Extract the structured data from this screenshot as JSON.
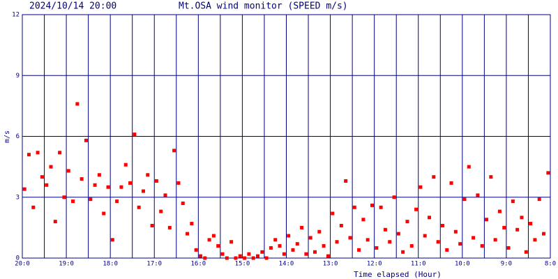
{
  "chart_data": {
    "type": "scatter",
    "title": "Mt.OSA wind monitor (SPEED m/s)",
    "subtitle": "2024/10/14 20:00",
    "y_label": "m/s",
    "x_label": "Time elapsed (Hour)",
    "color": "#ff0000",
    "grid_color": "#000080",
    "grid": true,
    "xlim": [
      0,
      12
    ],
    "ylim": [
      0,
      12
    ],
    "yticks": [
      0,
      3,
      6,
      9,
      12
    ],
    "xticks": [
      {
        "value": 0,
        "label": "20:0"
      },
      {
        "value": 1,
        "label": "19:0"
      },
      {
        "value": 2,
        "label": "18:0"
      },
      {
        "value": 3,
        "label": "17:0"
      },
      {
        "value": 4,
        "label": "16:0"
      },
      {
        "value": 5,
        "label": "15:0"
      },
      {
        "value": 6,
        "label": "14:0"
      },
      {
        "value": 7,
        "label": "13:0"
      },
      {
        "value": 8,
        "label": "12:0"
      },
      {
        "value": 9,
        "label": "11:0"
      },
      {
        "value": 10,
        "label": "10:0"
      },
      {
        "value": 11,
        "label": "9:0"
      },
      {
        "value": 12,
        "label": "8:0"
      }
    ],
    "xminor_grid": [
      0.5,
      1.5,
      2.5,
      3.5,
      4.5,
      5.5,
      6.5,
      7.5,
      8.5,
      9.5,
      10.5,
      11.5
    ],
    "x": [
      0.05,
      0.15,
      0.25,
      0.35,
      0.45,
      0.55,
      0.65,
      0.75,
      0.85,
      0.95,
      1.05,
      1.15,
      1.25,
      1.35,
      1.45,
      1.55,
      1.65,
      1.75,
      1.85,
      1.95,
      2.05,
      2.15,
      2.25,
      2.35,
      2.45,
      2.55,
      2.65,
      2.75,
      2.85,
      2.95,
      3.05,
      3.15,
      3.25,
      3.35,
      3.45,
      3.55,
      3.65,
      3.75,
      3.85,
      3.95,
      4.05,
      4.15,
      4.25,
      4.35,
      4.45,
      4.55,
      4.65,
      4.75,
      4.85,
      4.95,
      5.05,
      5.15,
      5.25,
      5.35,
      5.45,
      5.55,
      5.65,
      5.75,
      5.85,
      5.95,
      6.05,
      6.15,
      6.25,
      6.35,
      6.45,
      6.55,
      6.65,
      6.75,
      6.85,
      6.95,
      7.05,
      7.15,
      7.25,
      7.35,
      7.45,
      7.55,
      7.65,
      7.75,
      7.85,
      7.95,
      8.05,
      8.15,
      8.25,
      8.35,
      8.45,
      8.55,
      8.65,
      8.75,
      8.85,
      8.95,
      9.05,
      9.15,
      9.25,
      9.35,
      9.45,
      9.55,
      9.65,
      9.75,
      9.85,
      9.95,
      10.05,
      10.15,
      10.25,
      10.35,
      10.45,
      10.55,
      10.65,
      10.75,
      10.85,
      10.95,
      11.05,
      11.15,
      11.25,
      11.35,
      11.45,
      11.55,
      11.65,
      11.75,
      11.85,
      11.95
    ],
    "values": [
      3.4,
      5.1,
      2.5,
      5.2,
      4.0,
      3.6,
      4.5,
      1.8,
      5.2,
      3.0,
      4.3,
      2.8,
      7.6,
      3.9,
      5.8,
      2.9,
      3.6,
      4.1,
      2.2,
      3.5,
      0.9,
      2.8,
      3.5,
      4.6,
      3.7,
      6.1,
      2.5,
      3.3,
      4.1,
      1.6,
      3.8,
      2.3,
      3.1,
      1.5,
      5.3,
      3.7,
      2.7,
      1.2,
      1.7,
      0.4,
      0.1,
      0.0,
      0.9,
      1.1,
      0.6,
      0.2,
      0.0,
      0.8,
      0.0,
      0.1,
      0.0,
      0.2,
      0.0,
      0.1,
      0.3,
      0.0,
      0.5,
      0.9,
      0.6,
      0.2,
      1.1,
      0.4,
      0.7,
      1.5,
      0.2,
      1.0,
      0.3,
      1.3,
      0.6,
      0.1,
      2.2,
      0.8,
      1.6,
      3.8,
      1.0,
      2.5,
      0.4,
      1.9,
      0.9,
      2.6,
      0.5,
      2.5,
      1.4,
      0.8,
      3.0,
      1.2,
      0.3,
      1.8,
      0.6,
      2.4,
      3.5,
      1.1,
      2.0,
      4.0,
      0.8,
      1.6,
      0.4,
      3.7,
      1.3,
      0.7,
      2.9,
      4.5,
      1.0,
      3.1,
      0.6,
      1.9,
      4.0,
      0.9,
      2.3,
      1.5,
      0.5,
      2.8,
      1.4,
      2.0,
      0.3,
      1.7,
      0.9,
      2.9,
      1.2,
      4.2
    ]
  }
}
